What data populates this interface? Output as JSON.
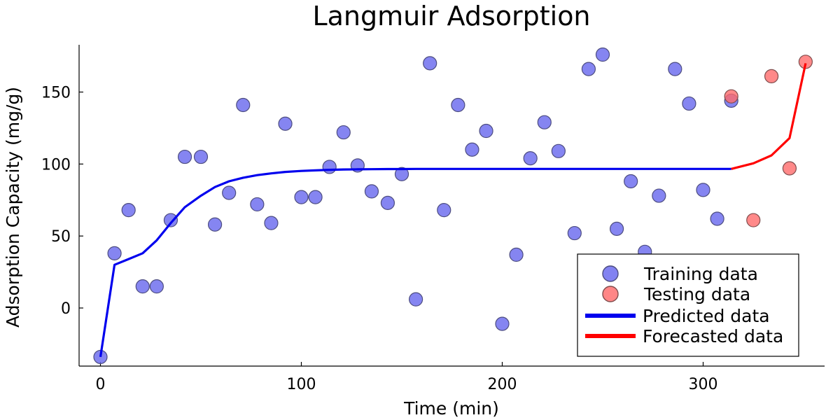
{
  "chart_data": {
    "type": "scatter",
    "title": "Langmuir Adsorption",
    "xlabel": "Time (min)",
    "ylabel": "Adsorption Capacity (mg/g)",
    "xlim": [
      -10,
      362
    ],
    "ylim": [
      -40,
      182
    ],
    "xticks": [
      0,
      100,
      200,
      300
    ],
    "yticks": [
      0,
      50,
      100,
      150
    ],
    "grid": false,
    "legend_position": "bottom-right",
    "colors": {
      "training": "#6666ee",
      "testing": "#ff6b6b",
      "predicted": "#0000ee",
      "forecasted": "#ff0000"
    },
    "series": [
      {
        "name": "Training data",
        "kind": "scatter",
        "x": [
          0,
          7,
          14,
          21,
          28,
          35,
          42,
          50,
          57,
          64,
          71,
          78,
          85,
          92,
          100,
          107,
          114,
          121,
          128,
          135,
          143,
          150,
          157,
          164,
          171,
          178,
          185,
          192,
          200,
          207,
          214,
          221,
          228,
          236,
          243,
          250,
          257,
          264,
          271,
          278,
          286,
          293,
          300,
          307,
          314
        ],
        "y": [
          -34,
          38,
          68,
          15,
          15,
          61,
          105,
          105,
          58,
          80,
          141,
          72,
          59,
          128,
          77,
          77,
          98,
          122,
          99,
          81,
          73,
          93,
          6,
          170,
          68,
          141,
          110,
          123,
          -11,
          37,
          104,
          129,
          109,
          52,
          166,
          176,
          55,
          88,
          39,
          78,
          166,
          142,
          82,
          62,
          144
        ]
      },
      {
        "name": "Testing data",
        "kind": "scatter",
        "x": [
          314,
          325,
          334,
          343,
          351
        ],
        "y": [
          147,
          61,
          161,
          97,
          171
        ]
      },
      {
        "name": "Predicted data",
        "kind": "line",
        "x": [
          0,
          7,
          14,
          21,
          28,
          35,
          42,
          50,
          57,
          64,
          71,
          78,
          85,
          92,
          100,
          107,
          114,
          121,
          128,
          135,
          143,
          150,
          157,
          164,
          171,
          178,
          185,
          192,
          200,
          207,
          214,
          221,
          228,
          236,
          243,
          250,
          257,
          264,
          271,
          278,
          286,
          293,
          300,
          307,
          314
        ],
        "y": [
          -34,
          30,
          34,
          38,
          47,
          59,
          70,
          78,
          84,
          88,
          90.5,
          92.3,
          93.5,
          94.5,
          95.2,
          95.6,
          96,
          96.2,
          96.3,
          96.4,
          96.5,
          96.5,
          96.6,
          96.6,
          96.6,
          96.6,
          96.6,
          96.6,
          96.6,
          96.6,
          96.6,
          96.6,
          96.6,
          96.6,
          96.6,
          96.6,
          96.6,
          96.6,
          96.6,
          96.6,
          96.6,
          96.6,
          96.6,
          96.6,
          96.6
        ]
      },
      {
        "name": "Forecasted data",
        "kind": "line",
        "x": [
          314,
          325,
          334,
          343,
          351
        ],
        "y": [
          96.6,
          100.5,
          106,
          118,
          170
        ]
      }
    ]
  }
}
